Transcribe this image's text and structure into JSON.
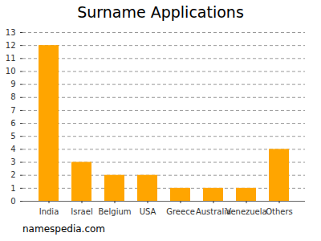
{
  "chart_data": {
    "type": "bar",
    "title": "Surname Applications",
    "caption": "namespedia.com",
    "categories": [
      "India",
      "Israel",
      "Belgium",
      "USA",
      "Greece",
      "Australia",
      "Venezuela",
      "Others"
    ],
    "values": [
      12,
      3,
      2,
      2,
      1,
      1,
      1,
      4
    ],
    "color": "#ffa500",
    "ylim": [
      0,
      13
    ],
    "yticks": [
      0,
      1,
      2,
      3,
      4,
      5,
      6,
      7,
      8,
      9,
      10,
      11,
      12,
      13
    ],
    "grid": true
  }
}
